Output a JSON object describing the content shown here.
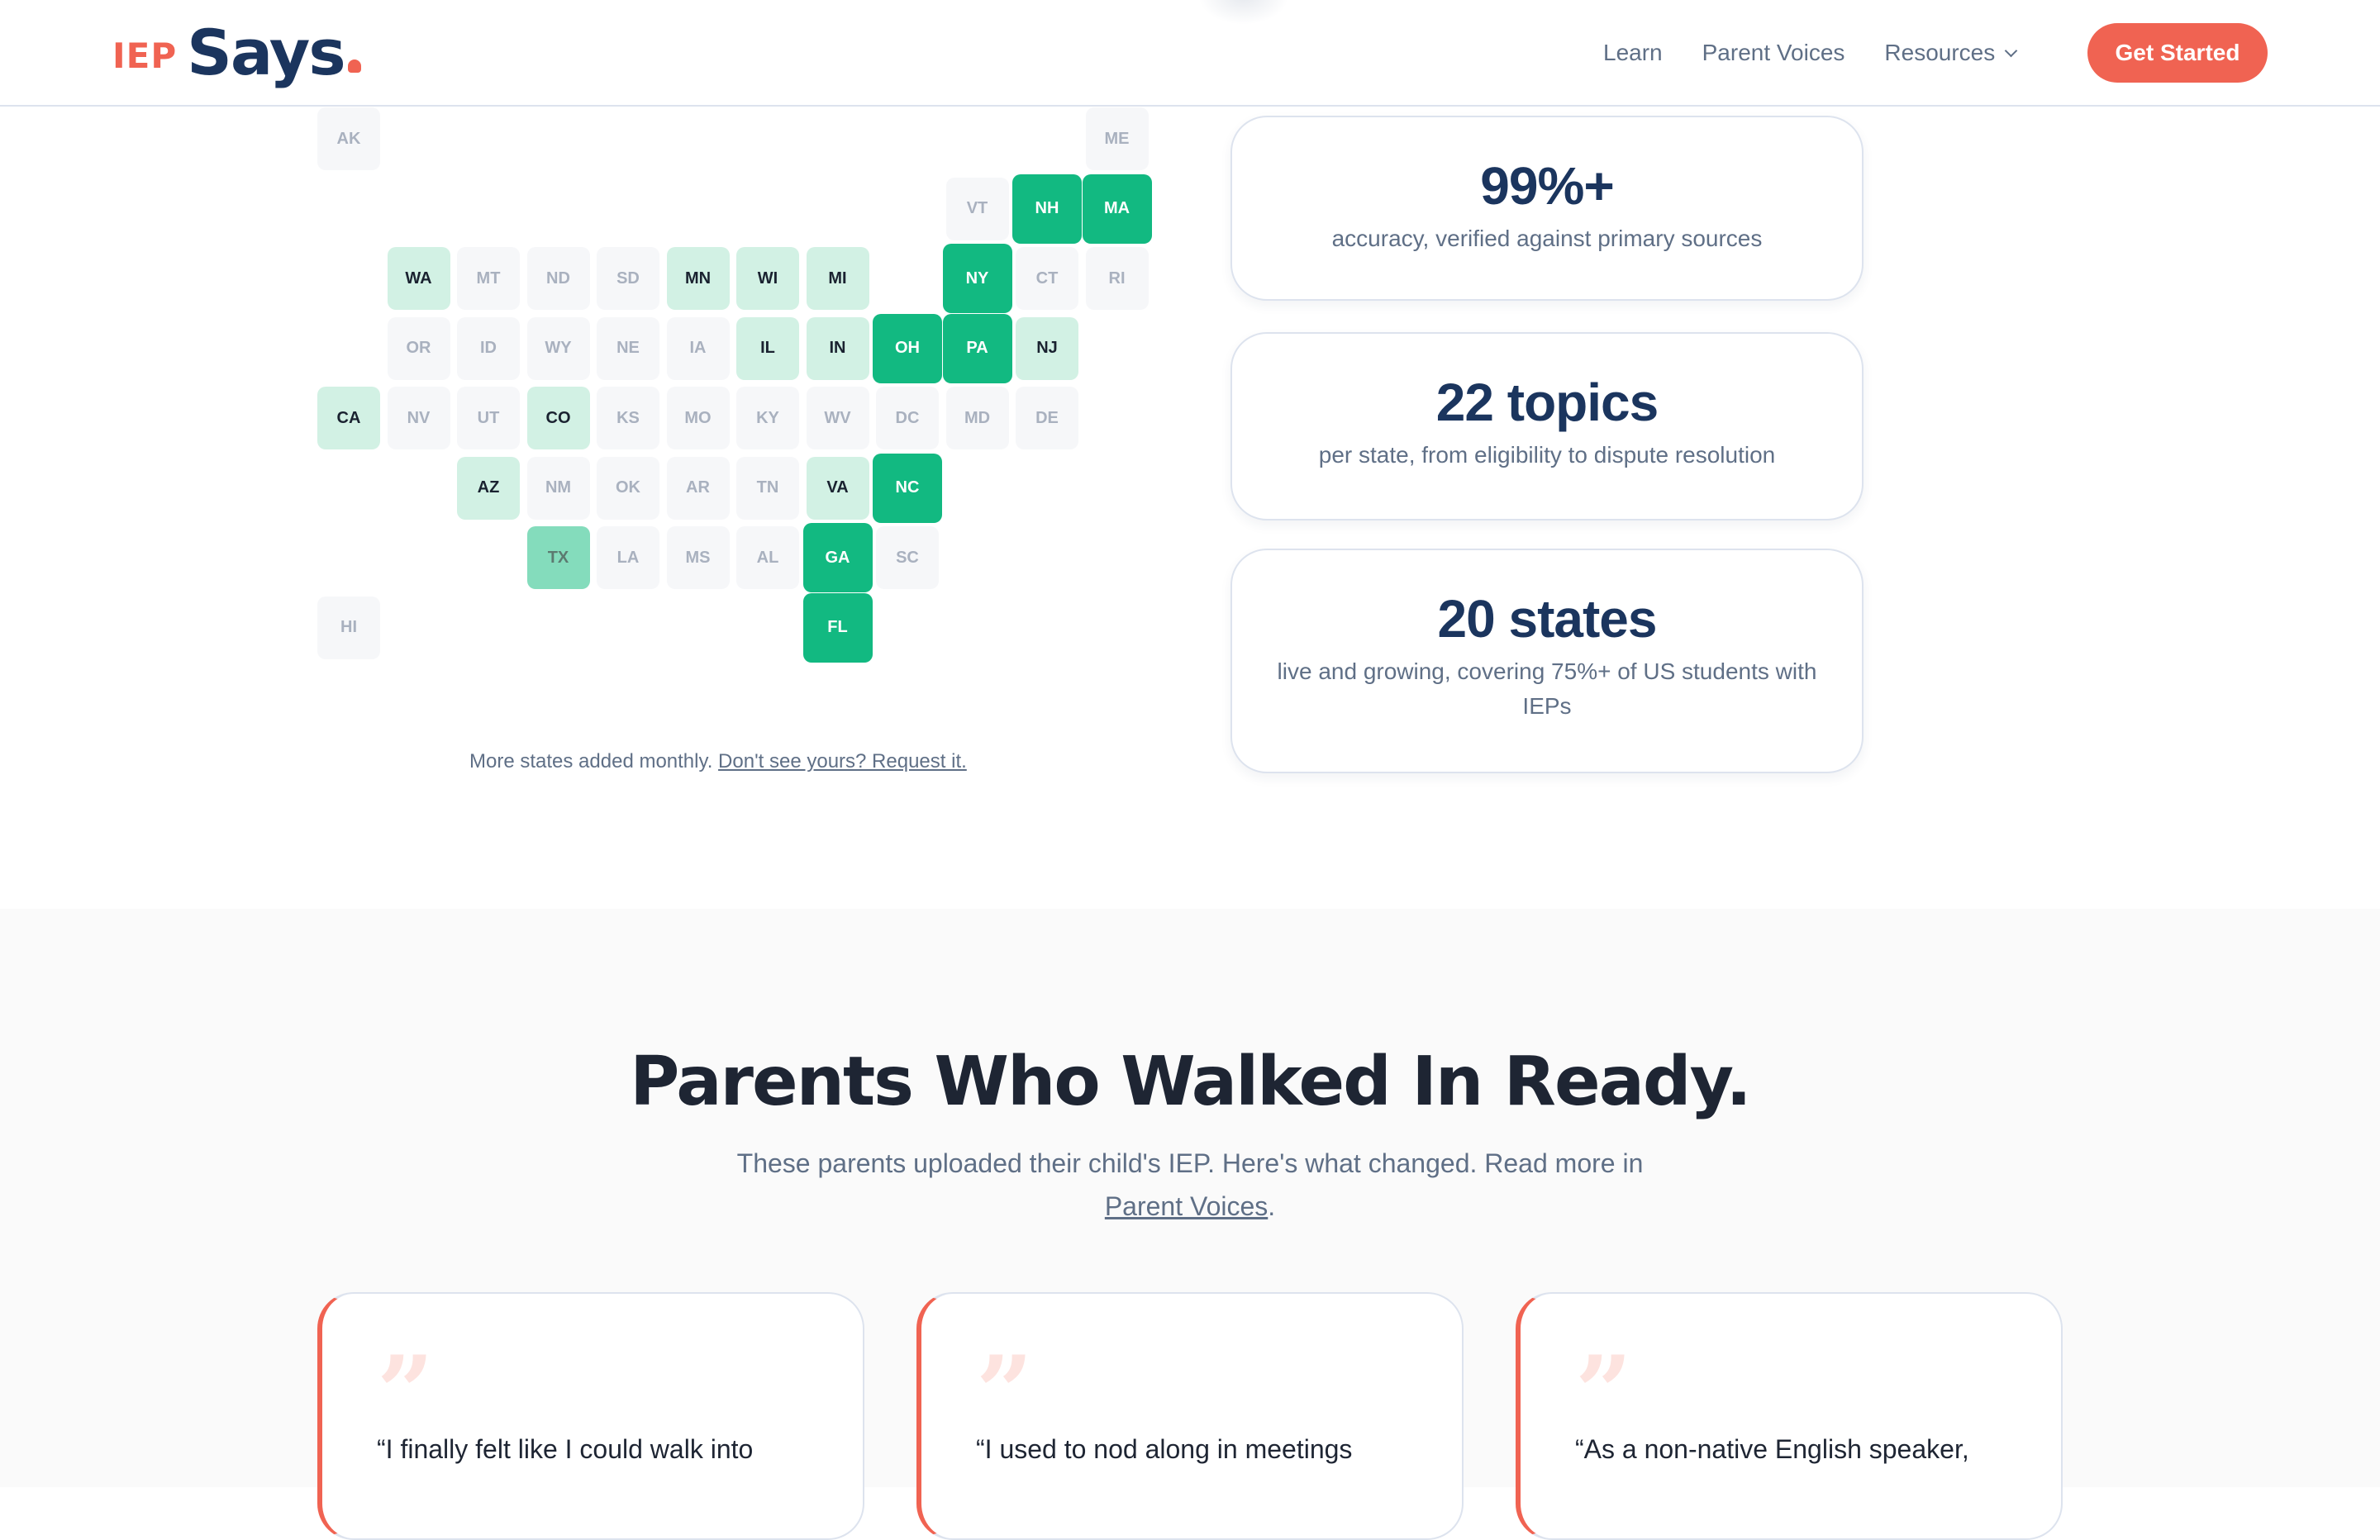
{
  "header": {
    "logo": {
      "prefix": "IEP",
      "name": "Says"
    },
    "nav": [
      {
        "label": "Learn"
      },
      {
        "label": "Parent Voices"
      },
      {
        "label": "Resources",
        "has_dropdown": true
      }
    ],
    "cta_label": "Get Started"
  },
  "colors": {
    "brand_coral": "#f06352",
    "brand_navy": "#1b355e",
    "tile_strong": "#12b981",
    "tile_mid": "#84dcbc",
    "tile_mint": "#d2f1e4",
    "tile_default": "#f6f7f9"
  },
  "map": {
    "level_legend_note": "Tile levels are visual fill classes observed in the screenshot; the page shows no legend explaining them.",
    "level_counts": {
      "strong": 8,
      "mint": 11,
      "mid": 1,
      "colored_total": 20
    },
    "tiles": [
      {
        "code": "AK",
        "row": 0,
        "col": 0,
        "level": "none"
      },
      {
        "code": "ME",
        "row": 0,
        "col": 11,
        "level": "none"
      },
      {
        "code": "VT",
        "row": 1,
        "col": 9,
        "level": "none"
      },
      {
        "code": "NH",
        "row": 1,
        "col": 10,
        "level": "strong"
      },
      {
        "code": "MA",
        "row": 1,
        "col": 11,
        "level": "strong"
      },
      {
        "code": "WA",
        "row": 2,
        "col": 1,
        "level": "mint"
      },
      {
        "code": "MT",
        "row": 2,
        "col": 2,
        "level": "none"
      },
      {
        "code": "ND",
        "row": 2,
        "col": 3,
        "level": "none"
      },
      {
        "code": "SD",
        "row": 2,
        "col": 4,
        "level": "none"
      },
      {
        "code": "MN",
        "row": 2,
        "col": 5,
        "level": "mint"
      },
      {
        "code": "WI",
        "row": 2,
        "col": 6,
        "level": "mint"
      },
      {
        "code": "MI",
        "row": 2,
        "col": 7,
        "level": "mint"
      },
      {
        "code": "NY",
        "row": 2,
        "col": 9,
        "level": "strong"
      },
      {
        "code": "CT",
        "row": 2,
        "col": 10,
        "level": "none"
      },
      {
        "code": "RI",
        "row": 2,
        "col": 11,
        "level": "none"
      },
      {
        "code": "OR",
        "row": 3,
        "col": 1,
        "level": "none"
      },
      {
        "code": "ID",
        "row": 3,
        "col": 2,
        "level": "none"
      },
      {
        "code": "WY",
        "row": 3,
        "col": 3,
        "level": "none"
      },
      {
        "code": "NE",
        "row": 3,
        "col": 4,
        "level": "none"
      },
      {
        "code": "IA",
        "row": 3,
        "col": 5,
        "level": "none"
      },
      {
        "code": "IL",
        "row": 3,
        "col": 6,
        "level": "mint"
      },
      {
        "code": "IN",
        "row": 3,
        "col": 7,
        "level": "mint"
      },
      {
        "code": "OH",
        "row": 3,
        "col": 8,
        "level": "strong"
      },
      {
        "code": "PA",
        "row": 3,
        "col": 9,
        "level": "strong"
      },
      {
        "code": "NJ",
        "row": 3,
        "col": 10,
        "level": "mint"
      },
      {
        "code": "CA",
        "row": 4,
        "col": 0,
        "level": "mint"
      },
      {
        "code": "NV",
        "row": 4,
        "col": 1,
        "level": "none"
      },
      {
        "code": "UT",
        "row": 4,
        "col": 2,
        "level": "none"
      },
      {
        "code": "CO",
        "row": 4,
        "col": 3,
        "level": "mint"
      },
      {
        "code": "KS",
        "row": 4,
        "col": 4,
        "level": "none"
      },
      {
        "code": "MO",
        "row": 4,
        "col": 5,
        "level": "none"
      },
      {
        "code": "KY",
        "row": 4,
        "col": 6,
        "level": "none"
      },
      {
        "code": "WV",
        "row": 4,
        "col": 7,
        "level": "none"
      },
      {
        "code": "DC",
        "row": 4,
        "col": 8,
        "level": "none"
      },
      {
        "code": "MD",
        "row": 4,
        "col": 9,
        "level": "none"
      },
      {
        "code": "DE",
        "row": 4,
        "col": 10,
        "level": "none"
      },
      {
        "code": "AZ",
        "row": 5,
        "col": 2,
        "level": "mint"
      },
      {
        "code": "NM",
        "row": 5,
        "col": 3,
        "level": "none"
      },
      {
        "code": "OK",
        "row": 5,
        "col": 4,
        "level": "none"
      },
      {
        "code": "AR",
        "row": 5,
        "col": 5,
        "level": "none"
      },
      {
        "code": "TN",
        "row": 5,
        "col": 6,
        "level": "none"
      },
      {
        "code": "VA",
        "row": 5,
        "col": 7,
        "level": "mint"
      },
      {
        "code": "NC",
        "row": 5,
        "col": 8,
        "level": "strong"
      },
      {
        "code": "TX",
        "row": 6,
        "col": 3,
        "level": "mid"
      },
      {
        "code": "LA",
        "row": 6,
        "col": 4,
        "level": "none"
      },
      {
        "code": "MS",
        "row": 6,
        "col": 5,
        "level": "none"
      },
      {
        "code": "AL",
        "row": 6,
        "col": 6,
        "level": "none"
      },
      {
        "code": "GA",
        "row": 6,
        "col": 7,
        "level": "strong"
      },
      {
        "code": "SC",
        "row": 6,
        "col": 8,
        "level": "none"
      },
      {
        "code": "HI",
        "row": 7,
        "col": 0,
        "level": "none"
      },
      {
        "code": "FL",
        "row": 7,
        "col": 7,
        "level": "strong"
      }
    ],
    "note_text": "More states added monthly.",
    "note_link": "Don't see yours? Request it."
  },
  "stats": [
    {
      "value": "99%+",
      "caption": "accuracy, verified against primary sources"
    },
    {
      "value": "22 topics",
      "caption": "per state, from eligibility to dispute resolution"
    },
    {
      "value": "20 states",
      "caption": "live and growing, covering 75%+ of US students with IEPs"
    }
  ],
  "testimonials": {
    "heading": "Parents Who Walked In Ready.",
    "lede_before": "These parents uploaded their child's IEP. Here's what changed. Read more in ",
    "lede_link": "Parent Voices",
    "lede_after": ".",
    "visible_text_note": "Screenshot is cropped; only the first line of each quote is legible.",
    "cards": [
      {
        "quote_first_line": "“I finally felt like I could walk into"
      },
      {
        "quote_first_line": "“I used to nod along in meetings"
      },
      {
        "quote_first_line": "“As a non-native English speaker,"
      }
    ]
  }
}
